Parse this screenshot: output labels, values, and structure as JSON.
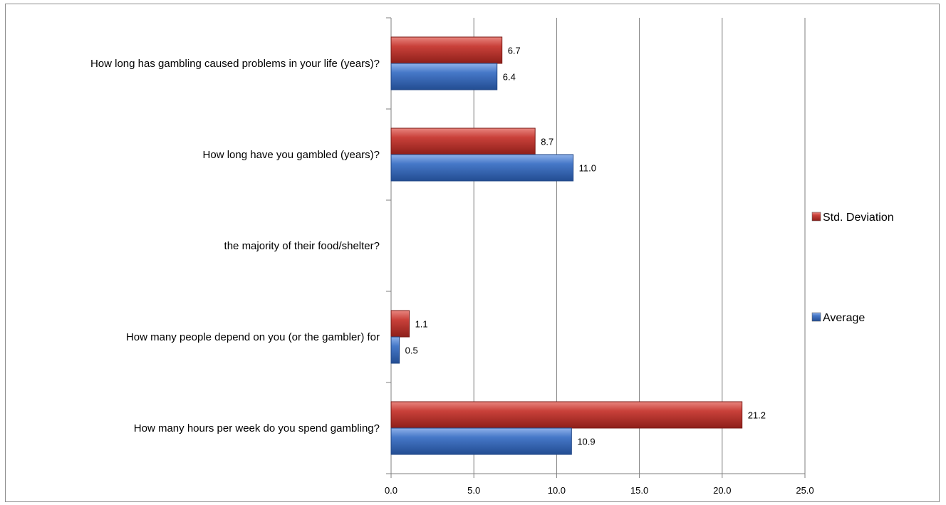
{
  "chart_data": {
    "type": "bar",
    "orientation": "horizontal",
    "categories": [
      "How long has gambling caused problems in your life (years)?",
      "How long have you gambled (years)?",
      "the majority of their food/shelter?",
      "How many people depend on you (or the gambler) for",
      "How many hours per week do you spend gambling?"
    ],
    "series": [
      {
        "name": "Std. Deviation",
        "color": "#c0392b",
        "values": [
          6.7,
          8.7,
          null,
          1.1,
          21.2
        ],
        "labels": [
          "6.7",
          "8.7",
          "",
          "1.1",
          "21.2"
        ]
      },
      {
        "name": "Average",
        "color": "#3b6fc4",
        "values": [
          6.4,
          11.0,
          null,
          0.5,
          10.9
        ],
        "labels": [
          "6.4",
          "11.0",
          "",
          "0.5",
          "10.9"
        ]
      }
    ],
    "xlim": [
      0,
      25
    ],
    "xticks": [
      "0.0",
      "5.0",
      "10.0",
      "15.0",
      "20.0",
      "25.0"
    ],
    "xtick_values": [
      0,
      5,
      10,
      15,
      20,
      25
    ],
    "grid": "vertical",
    "legend_position": "right",
    "title": "",
    "xlabel": "",
    "ylabel": ""
  }
}
